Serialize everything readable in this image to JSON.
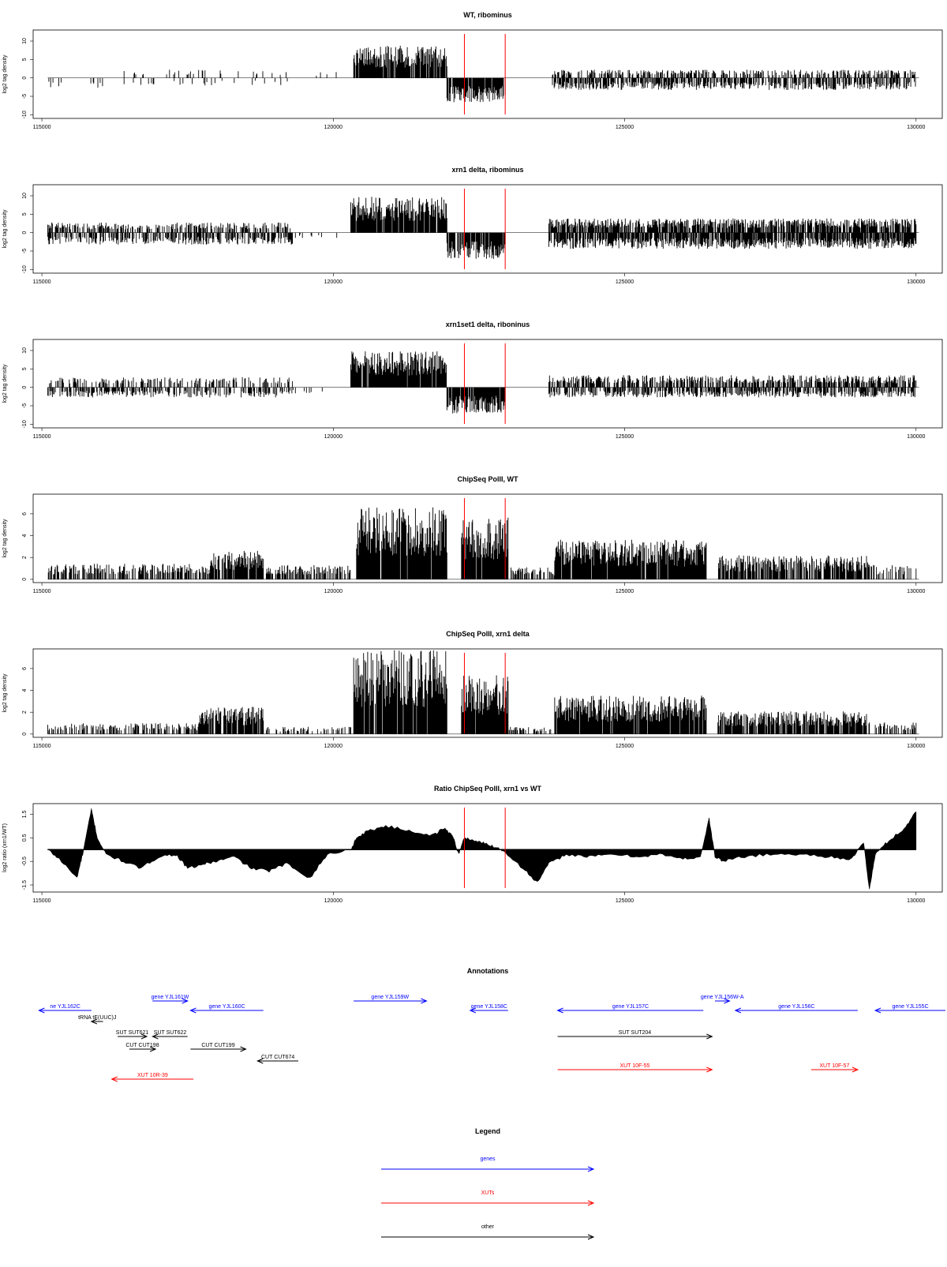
{
  "chart_data": [
    {
      "type": "bar",
      "title": "WT, ribominus",
      "ylabel": "log2 tag density",
      "xlim": [
        114850,
        130450
      ],
      "ylim": [
        -11,
        13
      ],
      "xticks": [
        115000,
        120000,
        125000,
        130000
      ],
      "yticks": [
        -10,
        -5,
        0,
        5,
        10
      ],
      "markers": [
        122250,
        122950
      ],
      "segments": [
        {
          "start": 115100,
          "end": 116050,
          "sign": -1,
          "amp": 2.5,
          "density": 0.15
        },
        {
          "start": 116350,
          "end": 119300,
          "sign": 1,
          "amp": 2.0,
          "density": 0.08
        },
        {
          "start": 116350,
          "end": 119300,
          "sign": -1,
          "amp": 2.0,
          "density": 0.08
        },
        {
          "start": 119700,
          "end": 120200,
          "sign": 1,
          "amp": 1.5,
          "density": 0.05
        },
        {
          "start": 120350,
          "end": 121950,
          "sign": 1,
          "amp": 8.0,
          "density": 0.9
        },
        {
          "start": 121950,
          "end": 122950,
          "sign": -1,
          "amp": 6.0,
          "density": 0.85
        },
        {
          "start": 123750,
          "end": 130000,
          "sign": 1,
          "amp": 2.0,
          "density": 0.45
        },
        {
          "start": 123750,
          "end": 130000,
          "sign": -1,
          "amp": 3.0,
          "density": 0.6
        }
      ]
    },
    {
      "type": "bar",
      "title": "xrn1 delta, ribominus",
      "ylabel": "log2 tag density",
      "xlim": [
        114850,
        130450
      ],
      "ylim": [
        -11,
        13
      ],
      "xticks": [
        115000,
        120000,
        125000,
        130000
      ],
      "yticks": [
        -10,
        -5,
        0,
        5,
        10
      ],
      "markers": [
        122250,
        122950
      ],
      "segments": [
        {
          "start": 115100,
          "end": 119300,
          "sign": 1,
          "amp": 2.5,
          "density": 0.4
        },
        {
          "start": 115100,
          "end": 119300,
          "sign": -1,
          "amp": 3.0,
          "density": 0.55
        },
        {
          "start": 119300,
          "end": 120200,
          "sign": -1,
          "amp": 1.5,
          "density": 0.1
        },
        {
          "start": 120300,
          "end": 121950,
          "sign": 1,
          "amp": 9.0,
          "density": 0.92
        },
        {
          "start": 121950,
          "end": 122950,
          "sign": -1,
          "amp": 6.5,
          "density": 0.88
        },
        {
          "start": 123700,
          "end": 130000,
          "sign": 1,
          "amp": 3.5,
          "density": 0.75
        },
        {
          "start": 123700,
          "end": 130000,
          "sign": -1,
          "amp": 4.0,
          "density": 0.8
        }
      ]
    },
    {
      "type": "bar",
      "title": "xrn1set1 delta, riboninus",
      "ylabel": "log2 tag density",
      "xlim": [
        114850,
        130450
      ],
      "ylim": [
        -11,
        13
      ],
      "xticks": [
        115000,
        120000,
        125000,
        130000
      ],
      "yticks": [
        -10,
        -5,
        0,
        5,
        10
      ],
      "markers": [
        122250,
        122950
      ],
      "segments": [
        {
          "start": 115100,
          "end": 119300,
          "sign": 1,
          "amp": 2.5,
          "density": 0.35
        },
        {
          "start": 115100,
          "end": 119300,
          "sign": -1,
          "amp": 2.5,
          "density": 0.5
        },
        {
          "start": 119300,
          "end": 120200,
          "sign": -1,
          "amp": 1.5,
          "density": 0.1
        },
        {
          "start": 120300,
          "end": 121950,
          "sign": 1,
          "amp": 9.0,
          "density": 0.92
        },
        {
          "start": 121950,
          "end": 122950,
          "sign": -1,
          "amp": 6.5,
          "density": 0.88
        },
        {
          "start": 123700,
          "end": 130000,
          "sign": 1,
          "amp": 3.0,
          "density": 0.65
        },
        {
          "start": 123700,
          "end": 130000,
          "sign": -1,
          "amp": 2.5,
          "density": 0.6
        }
      ]
    },
    {
      "type": "bar",
      "title": "ChipSeq PolII, WT",
      "ylabel": "log2 tag density",
      "xlim": [
        114850,
        130450
      ],
      "ylim": [
        -0.3,
        7.8
      ],
      "xticks": [
        115000,
        120000,
        125000,
        130000
      ],
      "yticks": [
        0,
        2,
        4,
        6
      ],
      "markers": [
        122250,
        122950
      ],
      "segments": [
        {
          "start": 115100,
          "end": 117900,
          "sign": 1,
          "amp": 1.3,
          "density": 0.55
        },
        {
          "start": 117900,
          "end": 118800,
          "sign": 1,
          "amp": 2.4,
          "density": 0.85
        },
        {
          "start": 118800,
          "end": 120300,
          "sign": 1,
          "amp": 1.2,
          "density": 0.6
        },
        {
          "start": 120400,
          "end": 121950,
          "sign": 1,
          "amp": 6.0,
          "density": 0.97
        },
        {
          "start": 122200,
          "end": 123000,
          "sign": 1,
          "amp": 5.2,
          "density": 0.97
        },
        {
          "start": 123000,
          "end": 123800,
          "sign": 1,
          "amp": 1.0,
          "density": 0.5
        },
        {
          "start": 123800,
          "end": 126400,
          "sign": 1,
          "amp": 3.3,
          "density": 0.95
        },
        {
          "start": 126600,
          "end": 129200,
          "sign": 1,
          "amp": 2.0,
          "density": 0.75
        },
        {
          "start": 129200,
          "end": 130000,
          "sign": 1,
          "amp": 1.2,
          "density": 0.35
        }
      ]
    },
    {
      "type": "bar",
      "title": "ChipSeq PolII, xrn1 delta",
      "ylabel": "log2 tag density",
      "xlim": [
        114850,
        130450
      ],
      "ylim": [
        -0.3,
        7.8
      ],
      "xticks": [
        115000,
        120000,
        125000,
        130000
      ],
      "yticks": [
        0,
        2,
        4,
        6
      ],
      "markers": [
        122250,
        122950
      ],
      "segments": [
        {
          "start": 115100,
          "end": 117700,
          "sign": 1,
          "amp": 0.9,
          "density": 0.45
        },
        {
          "start": 117700,
          "end": 118800,
          "sign": 1,
          "amp": 2.3,
          "density": 0.85
        },
        {
          "start": 118800,
          "end": 120300,
          "sign": 1,
          "amp": 0.6,
          "density": 0.35
        },
        {
          "start": 120350,
          "end": 121950,
          "sign": 1,
          "amp": 7.0,
          "density": 0.97
        },
        {
          "start": 122200,
          "end": 123000,
          "sign": 1,
          "amp": 5.0,
          "density": 0.97
        },
        {
          "start": 123000,
          "end": 123800,
          "sign": 1,
          "amp": 0.6,
          "density": 0.4
        },
        {
          "start": 123800,
          "end": 126400,
          "sign": 1,
          "amp": 3.2,
          "density": 0.95
        },
        {
          "start": 126600,
          "end": 129200,
          "sign": 1,
          "amp": 1.9,
          "density": 0.8
        },
        {
          "start": 129300,
          "end": 130000,
          "sign": 1,
          "amp": 1.0,
          "density": 0.45
        }
      ]
    },
    {
      "type": "area",
      "title": "Ratio ChipSeq PolII, xrn1 vs WT",
      "ylabel": "log2 ratio (xrn1/WT)",
      "xlim": [
        114850,
        130450
      ],
      "ylim": [
        -1.8,
        1.95
      ],
      "xticks": [
        115000,
        120000,
        125000,
        130000
      ],
      "yticks": [
        -1.5,
        -0.5,
        0.5,
        1.5
      ],
      "ytick_labels": [
        "-1.5",
        "-0.5",
        "0.5",
        "1.5"
      ],
      "markers": [
        122250,
        122950
      ],
      "x": [
        115100,
        115300,
        115600,
        115700,
        115850,
        115950,
        116100,
        116400,
        116700,
        117000,
        117300,
        117500,
        117800,
        118000,
        118300,
        118600,
        118900,
        119200,
        119600,
        119900,
        120300,
        120400,
        120600,
        120900,
        121300,
        121700,
        121900,
        122050,
        122150,
        122250,
        122400,
        122600,
        122800,
        122950,
        123300,
        123500,
        123700,
        124000,
        124400,
        124800,
        125200,
        125600,
        126000,
        126300,
        126450,
        126550,
        126700,
        127000,
        127500,
        128000,
        128500,
        128900,
        129100,
        129200,
        129300,
        129500,
        129800,
        130000
      ],
      "values": [
        0.0,
        -0.4,
        -1.2,
        -0.2,
        1.7,
        0.5,
        -0.2,
        -0.5,
        -0.8,
        -0.3,
        -0.2,
        -0.8,
        -0.6,
        -0.5,
        -0.3,
        -0.8,
        -0.9,
        -0.6,
        -1.2,
        -0.2,
        0.0,
        0.5,
        0.8,
        1.0,
        0.8,
        0.6,
        0.9,
        0.6,
        -0.2,
        0.5,
        0.4,
        0.25,
        0.1,
        -0.1,
        -0.9,
        -1.4,
        -0.6,
        -0.2,
        -0.3,
        -0.2,
        -0.3,
        -0.2,
        -0.4,
        -0.3,
        1.3,
        -0.3,
        -0.5,
        -0.3,
        -0.2,
        -0.2,
        -0.3,
        -0.4,
        0.3,
        -1.7,
        -0.2,
        0.3,
        0.9,
        1.6
      ]
    }
  ],
  "annotations": {
    "title": "Annotations",
    "items": [
      {
        "label": "ne YJL162C",
        "kind": "gene",
        "start": 114950,
        "end": 115850,
        "dir": -1,
        "row": 0
      },
      {
        "label": "gene YJL161W",
        "kind": "gene",
        "start": 116900,
        "end": 117500,
        "dir": 1,
        "row": -1
      },
      {
        "label": "gene YJL160C",
        "kind": "gene",
        "start": 117550,
        "end": 118800,
        "dir": -1,
        "row": 0
      },
      {
        "label": "gene YJL159W",
        "kind": "gene",
        "start": 120350,
        "end": 121600,
        "dir": 1,
        "row": -1
      },
      {
        "label": "gene YJL158C",
        "kind": "gene",
        "start": 122350,
        "end": 123000,
        "dir": -1,
        "row": 0
      },
      {
        "label": "gene YJL157C",
        "kind": "gene",
        "start": 123850,
        "end": 126350,
        "dir": -1,
        "row": 0
      },
      {
        "label": "gene YJL156W-A",
        "kind": "gene",
        "start": 126550,
        "end": 126800,
        "dir": 1,
        "row": -1
      },
      {
        "label": "gene YJL156C",
        "kind": "gene",
        "start": 126900,
        "end": 129000,
        "dir": -1,
        "row": 0
      },
      {
        "label": "gene YJL155C",
        "kind": "gene",
        "start": 129300,
        "end": 130600,
        "dir": -1,
        "row": 0
      },
      {
        "label": "tRNA tE(UUC)J",
        "kind": "other",
        "start": 115850,
        "end": 116050,
        "dir": -1,
        "row": 1
      },
      {
        "label": "SUT SUT621",
        "kind": "other",
        "start": 116300,
        "end": 116800,
        "dir": 1,
        "row": 2
      },
      {
        "label": "SUT SUT622",
        "kind": "other",
        "start": 116900,
        "end": 117500,
        "dir": -1,
        "row": 2
      },
      {
        "label": "CUT CUT198",
        "kind": "other",
        "start": 116500,
        "end": 116950,
        "dir": 1,
        "row": 3
      },
      {
        "label": "CUT CUT199",
        "kind": "other",
        "start": 117550,
        "end": 118500,
        "dir": 1,
        "row": 3
      },
      {
        "label": "CUT CUT674",
        "kind": "other",
        "start": 118700,
        "end": 119400,
        "dir": -1,
        "row": 4
      },
      {
        "label": "SUT SUT204",
        "kind": "other",
        "start": 123850,
        "end": 126500,
        "dir": 1,
        "row": 2
      },
      {
        "label": "XUT 10F-55",
        "kind": "xut",
        "start": 123850,
        "end": 126500,
        "dir": 1,
        "row": 5
      },
      {
        "label": "XUT 10F-57",
        "kind": "xut",
        "start": 128200,
        "end": 129000,
        "dir": 1,
        "row": 5
      },
      {
        "label": "XUT 10R-39",
        "kind": "xut",
        "start": 116200,
        "end": 117600,
        "dir": -1,
        "row": 6
      }
    ]
  },
  "legend": {
    "title": "Legend",
    "items": [
      {
        "label": "genes",
        "color": "#0000ff"
      },
      {
        "label": "XUTs",
        "color": "#ff0000"
      },
      {
        "label": "other",
        "color": "#000000"
      }
    ]
  },
  "colors": {
    "gene": "#0000ff",
    "xut": "#ff0000",
    "other": "#000000",
    "marker": "#ff0000",
    "bars": "#000000"
  }
}
